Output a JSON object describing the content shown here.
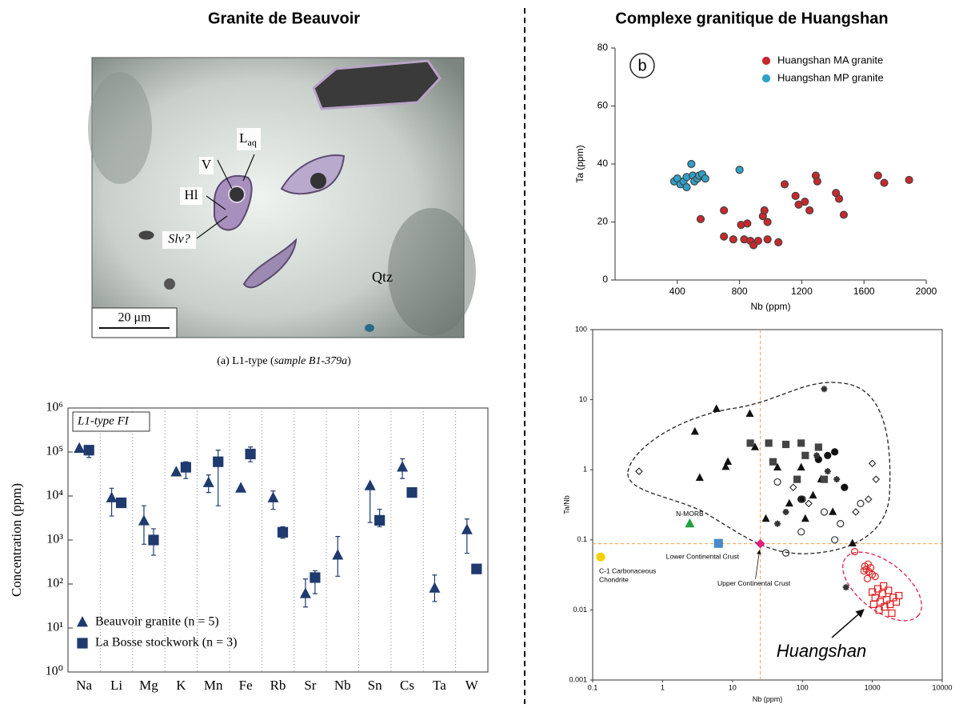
{
  "left_title": "Granite de Beauvoir",
  "right_title": "Complexe granitique de Huangshan",
  "photo": {
    "labels": {
      "laq": {
        "base": "L",
        "sub": "aq"
      },
      "v": "V",
      "hl": "Hl",
      "slv": "Slv?",
      "qtz": "Qtz"
    },
    "scale_bar": "20 μm",
    "caption": {
      "prefix": "(a) L1-type (",
      "sample": "sample B1-379a",
      "suffix": ")"
    }
  },
  "chart_data": [
    {
      "type": "categorical_scatter",
      "annotation": "L1-type FI",
      "ylabel": "Concentration (ppm)",
      "log_y": true,
      "ylim": [
        1,
        1000000
      ],
      "yticks": [
        {
          "value": 1,
          "label": "10⁰"
        },
        {
          "value": 10,
          "label": "10¹"
        },
        {
          "value": 100,
          "label": "10²"
        },
        {
          "value": 1000,
          "label": "10³"
        },
        {
          "value": 10000,
          "label": "10⁴"
        },
        {
          "value": 100000,
          "label": "10⁵"
        },
        {
          "value": 1000000,
          "label": "10⁶"
        }
      ],
      "categories": [
        "Na",
        "Li",
        "Mg",
        "K",
        "Mn",
        "Fe",
        "Rb",
        "Sr",
        "Nb",
        "Sn",
        "Cs",
        "Ta",
        "W"
      ],
      "grid": "x",
      "legend": "bottom-left",
      "series": [
        {
          "name": "Beauvoir granite (n = 5)",
          "marker": "triangle",
          "color": "#1f3a6e",
          "values": [
            120000,
            9000,
            2700,
            35000,
            20000,
            15000,
            9000,
            60,
            450,
            17000,
            45000,
            80,
            1700
          ],
          "error_low": [
            null,
            3500,
            800,
            null,
            12000,
            null,
            5000,
            30,
            150,
            2500,
            25000,
            40,
            500
          ],
          "error_high": [
            null,
            15000,
            6000,
            null,
            30000,
            null,
            13000,
            130,
            1200,
            null,
            70000,
            160,
            3000
          ]
        },
        {
          "name": "La Bosse stockwork (n = 3)",
          "marker": "square",
          "color": "#1f3a6e",
          "values": [
            110000,
            7000,
            1000,
            45000,
            60000,
            90000,
            1500,
            140,
            null,
            2800,
            12000,
            null,
            220
          ],
          "error_low": [
            75000,
            null,
            450,
            25000,
            6000,
            60000,
            1100,
            60,
            null,
            2000,
            null,
            null,
            null
          ],
          "error_high": [
            130000,
            null,
            1800,
            60000,
            110000,
            130000,
            2000,
            200,
            null,
            5000,
            null,
            null,
            null
          ]
        }
      ]
    },
    {
      "type": "scatter",
      "panel_label": "b",
      "xlabel": "Nb (ppm)",
      "ylabel": "Ta (ppm)",
      "xlim": [
        0,
        2000
      ],
      "ylim": [
        0,
        80
      ],
      "xticks": [
        400,
        800,
        1200,
        1600,
        2000
      ],
      "yticks": [
        0,
        20,
        40,
        60,
        80
      ],
      "grid": false,
      "legend": "top-right",
      "series": [
        {
          "name": "Huangshan MA granite",
          "color": "#c8282c",
          "marker": "circle",
          "filled": true,
          "x": [
            550,
            700,
            700,
            760,
            810,
            830,
            850,
            870,
            890,
            920,
            950,
            960,
            980,
            980,
            1050,
            1090,
            1160,
            1180,
            1220,
            1250,
            1290,
            1300,
            1420,
            1440,
            1470,
            1690,
            1730,
            1890
          ],
          "values": [
            21,
            24,
            15,
            14,
            19,
            14,
            19.5,
            13.5,
            12,
            13.5,
            22,
            24,
            20,
            14,
            13,
            33,
            29,
            26,
            27,
            24,
            36,
            34,
            30,
            28,
            22.5,
            36,
            33.5,
            34.5
          ]
        },
        {
          "name": "Huangshan MP granite",
          "color": "#2fa0c8",
          "marker": "circle",
          "filled": true,
          "x": [
            380,
            400,
            420,
            440,
            460,
            460,
            490,
            500,
            510,
            530,
            540,
            560,
            580,
            800
          ],
          "values": [
            34,
            35,
            33,
            34,
            35.5,
            32,
            40,
            36,
            34,
            35,
            36,
            36.5,
            35,
            38
          ]
        }
      ]
    },
    {
      "type": "scatter",
      "log_x": true,
      "log_y": true,
      "xlabel": "Nb (ppm)",
      "ylabel": "Ta/Nb",
      "xlim": [
        0.1,
        10000
      ],
      "ylim": [
        0.001,
        100
      ],
      "xticks": [
        0.1,
        1,
        10,
        100,
        1000,
        10000
      ],
      "yticks": [
        0.001,
        0.01,
        0.1,
        1,
        10,
        100
      ],
      "grid": false,
      "reference_lines": {
        "x": 25,
        "y": 0.088,
        "color": "#f0a050"
      },
      "annotation": "Huangshan",
      "reference_points": [
        {
          "label": [
            "C-1 Carbonaceous",
            "Chondrite"
          ],
          "x": 0.13,
          "y": 0.057,
          "color": "#f5d000",
          "marker": "circle"
        },
        {
          "label": [
            "N-MORB"
          ],
          "x": 2.45,
          "y": 0.17,
          "color": "#22a040",
          "marker": "triangle"
        },
        {
          "label": [
            "Lower Continental Crust"
          ],
          "x": 6.3,
          "y": 0.089,
          "color": "#4a8ac8",
          "marker": "square"
        },
        {
          "label": [
            "Upper Continental Crust"
          ],
          "x": 25,
          "y": 0.088,
          "color": "#e0207a",
          "marker": "diamond"
        }
      ],
      "series": [
        {
          "marker": "triangle",
          "color": "#111111",
          "filled": true,
          "x": [
            2.9,
            5.9,
            17.7,
            8.6,
            8,
            3.4,
            21,
            44,
            96,
            185,
            142,
            272,
            30,
            65,
            110,
            520
          ],
          "values": [
            3.5,
            7.4,
            6.3,
            1.3,
            1.1,
            0.77,
            2.1,
            1.08,
            1.08,
            0.73,
            0.43,
            0.25,
            0.2,
            0.33,
            0.2,
            0.089
          ]
        },
        {
          "marker": "square",
          "color": "#444444",
          "filled": true,
          "x": [
            18,
            33,
            58,
            96,
            110,
            170,
            38,
            84,
            205
          ],
          "values": [
            2.4,
            2.4,
            2.3,
            2.4,
            1.6,
            2.1,
            1.3,
            0.73,
            0.73
          ]
        },
        {
          "marker": "circle",
          "color": "#111111",
          "filled": true,
          "x": [
            290,
            170,
            230,
            400,
            96
          ],
          "values": [
            1.8,
            1.4,
            1.6,
            0.56,
            0.38
          ]
        },
        {
          "marker": "circle",
          "color": "#333333",
          "filled": false,
          "x": [
            44,
            100,
            205,
            350,
            58,
            290,
            96,
            680
          ],
          "values": [
            0.67,
            0.38,
            0.25,
            0.17,
            0.065,
            0.1,
            0.13,
            0.33
          ]
        },
        {
          "marker": "diamond",
          "color": "#333333",
          "filled": false,
          "x": [
            0.46,
            1000,
            1130,
            880,
            580,
            74,
            123
          ],
          "values": [
            0.95,
            1.23,
            0.73,
            0.38,
            0.25,
            0.56,
            0.33
          ]
        },
        {
          "marker": "cross",
          "color": "#333333",
          "filled": false,
          "x": [
            205,
            310,
            230,
            160,
            420,
            44,
            58
          ],
          "values": [
            14.2,
            0.73,
            0.95,
            1.6,
            0.021,
            0.17,
            0.25
          ]
        },
        {
          "marker": "circle",
          "color": "#e02020",
          "filled": false,
          "x": [
            560,
            780,
            820,
            870,
            900,
            950,
            1000,
            760,
            1100,
            850
          ],
          "values": [
            0.068,
            0.042,
            0.038,
            0.045,
            0.035,
            0.04,
            0.032,
            0.036,
            0.03,
            0.028
          ]
        },
        {
          "marker": "square",
          "color": "#e02020",
          "filled": false,
          "x": [
            1000,
            1100,
            1200,
            1300,
            1400,
            1500,
            1600,
            1700,
            1800,
            2000,
            2200,
            2400,
            1250,
            1450,
            1900,
            1050
          ],
          "values": [
            0.018,
            0.015,
            0.02,
            0.013,
            0.017,
            0.011,
            0.014,
            0.019,
            0.012,
            0.015,
            0.013,
            0.016,
            0.01,
            0.022,
            0.009,
            0.012
          ]
        }
      ]
    }
  ]
}
